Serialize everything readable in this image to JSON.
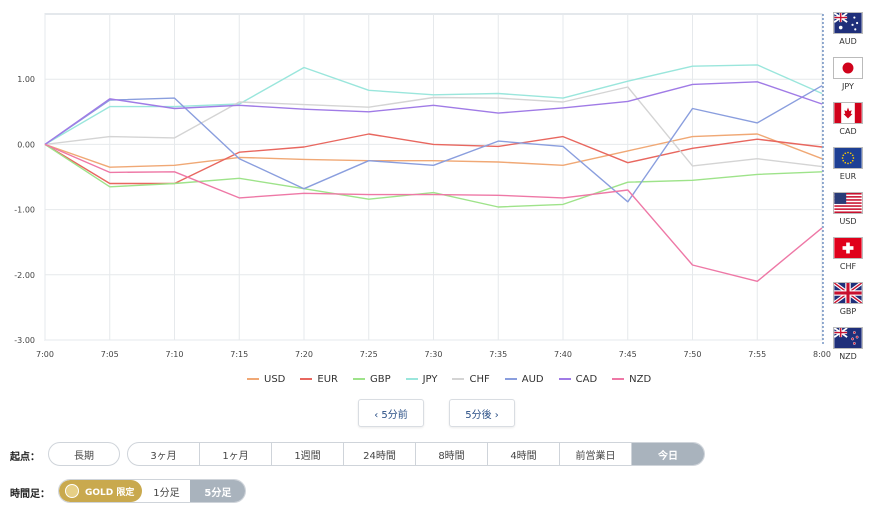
{
  "chart_data": {
    "type": "line",
    "x": [
      "7:00",
      "7:05",
      "7:10",
      "7:15",
      "7:20",
      "7:25",
      "7:30",
      "7:35",
      "7:40",
      "7:45",
      "7:50",
      "7:55",
      "8:00"
    ],
    "ylim": [
      -3.0,
      2.0
    ],
    "yticks": [
      "1.00",
      "0.00",
      "-1.00",
      "-2.00",
      "-3.00"
    ],
    "ytick_values": [
      1.0,
      0.0,
      -1.0,
      -2.0,
      -3.0
    ],
    "grid": true,
    "legend_position": "bottom",
    "series": [
      {
        "name": "USD",
        "color": "#f0a875",
        "values": [
          0.0,
          -0.35,
          -0.32,
          -0.2,
          -0.23,
          -0.25,
          -0.25,
          -0.27,
          -0.32,
          -0.1,
          0.12,
          0.16,
          -0.22
        ]
      },
      {
        "name": "EUR",
        "color": "#e8675f",
        "values": [
          0.0,
          -0.6,
          -0.6,
          -0.12,
          -0.04,
          0.16,
          0.0,
          -0.03,
          0.12,
          -0.28,
          -0.06,
          0.08,
          -0.04
        ]
      },
      {
        "name": "GBP",
        "color": "#9ee38a",
        "values": [
          0.0,
          -0.65,
          -0.6,
          -0.52,
          -0.68,
          -0.84,
          -0.74,
          -0.96,
          -0.92,
          -0.58,
          -0.55,
          -0.46,
          -0.42
        ]
      },
      {
        "name": "JPY",
        "color": "#9ae6dc",
        "values": [
          0.0,
          0.58,
          0.58,
          0.62,
          1.18,
          0.83,
          0.76,
          0.78,
          0.71,
          0.97,
          1.2,
          1.22,
          0.78
        ]
      },
      {
        "name": "CHF",
        "color": "#d4d4d4",
        "values": [
          0.0,
          0.12,
          0.1,
          0.65,
          0.61,
          0.57,
          0.72,
          0.71,
          0.65,
          0.88,
          -0.33,
          -0.22,
          -0.34
        ]
      },
      {
        "name": "AUD",
        "color": "#8a9ede",
        "values": [
          0.0,
          0.68,
          0.71,
          -0.22,
          -0.68,
          -0.25,
          -0.32,
          0.05,
          -0.03,
          -0.88,
          0.55,
          0.33,
          0.9
        ]
      },
      {
        "name": "CAD",
        "color": "#a07be6",
        "values": [
          0.0,
          0.7,
          0.55,
          0.6,
          0.54,
          0.5,
          0.6,
          0.48,
          0.56,
          0.66,
          0.92,
          0.96,
          0.62
        ]
      },
      {
        "name": "NZD",
        "color": "#ee78a6",
        "values": [
          0.0,
          -0.43,
          -0.42,
          -0.82,
          -0.75,
          -0.77,
          -0.77,
          -0.78,
          -0.82,
          -0.7,
          -1.85,
          -2.1,
          -1.28
        ]
      }
    ]
  },
  "flags": [
    {
      "code": "AUD",
      "icon": "australia-flag"
    },
    {
      "code": "JPY",
      "icon": "japan-flag"
    },
    {
      "code": "CAD",
      "icon": "canada-flag"
    },
    {
      "code": "EUR",
      "icon": "eu-flag"
    },
    {
      "code": "USD",
      "icon": "usa-flag"
    },
    {
      "code": "CHF",
      "icon": "switzerland-flag"
    },
    {
      "code": "GBP",
      "icon": "uk-flag"
    },
    {
      "code": "NZD",
      "icon": "new-zealand-flag"
    }
  ],
  "nav": {
    "prev_label": "‹ 5分前",
    "next_label": "5分後 ›"
  },
  "kiten": {
    "label": "起点：",
    "long_label": "長期",
    "options": [
      "3ヶ月",
      "1ヶ月",
      "1週間",
      "24時間",
      "8時間",
      "4時間",
      "前営業日",
      "今日"
    ],
    "selected": "今日"
  },
  "jikanashi": {
    "label": "時間足：",
    "gold_label": "GOLD 限定",
    "options": [
      "1分足",
      "5分足"
    ],
    "selected": "5分足"
  }
}
